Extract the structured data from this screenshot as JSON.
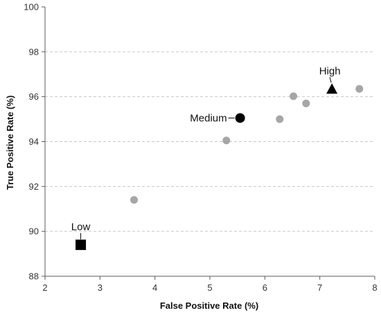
{
  "chart_data": {
    "type": "scatter",
    "title": "",
    "xlabel": "False Positive Rate (%)",
    "ylabel": "True Positive Rate (%)",
    "xlim": [
      2,
      8
    ],
    "ylim": [
      88,
      100
    ],
    "x_ticks": [
      2,
      3,
      4,
      5,
      6,
      7,
      8
    ],
    "y_ticks": [
      88,
      90,
      92,
      94,
      96,
      98,
      100
    ],
    "grid": "horizontal dashed",
    "legend": "none",
    "series": [
      {
        "marker": "circle",
        "color": "#a6a6a6",
        "points": [
          {
            "x": 3.62,
            "y": 91.4
          },
          {
            "x": 5.3,
            "y": 94.05
          },
          {
            "x": 6.27,
            "y": 95.0
          },
          {
            "x": 6.52,
            "y": 96.02
          },
          {
            "x": 6.75,
            "y": 95.7
          },
          {
            "x": 7.72,
            "y": 96.35
          }
        ]
      },
      {
        "marker": "labeled",
        "color": "#000000",
        "points": [
          {
            "x": 2.65,
            "y": 89.4,
            "label": "Low",
            "shape": "square"
          },
          {
            "x": 5.55,
            "y": 95.05,
            "label": "Medium",
            "shape": "circle"
          },
          {
            "x": 7.22,
            "y": 96.35,
            "label": "High",
            "shape": "triangle"
          }
        ]
      }
    ]
  }
}
